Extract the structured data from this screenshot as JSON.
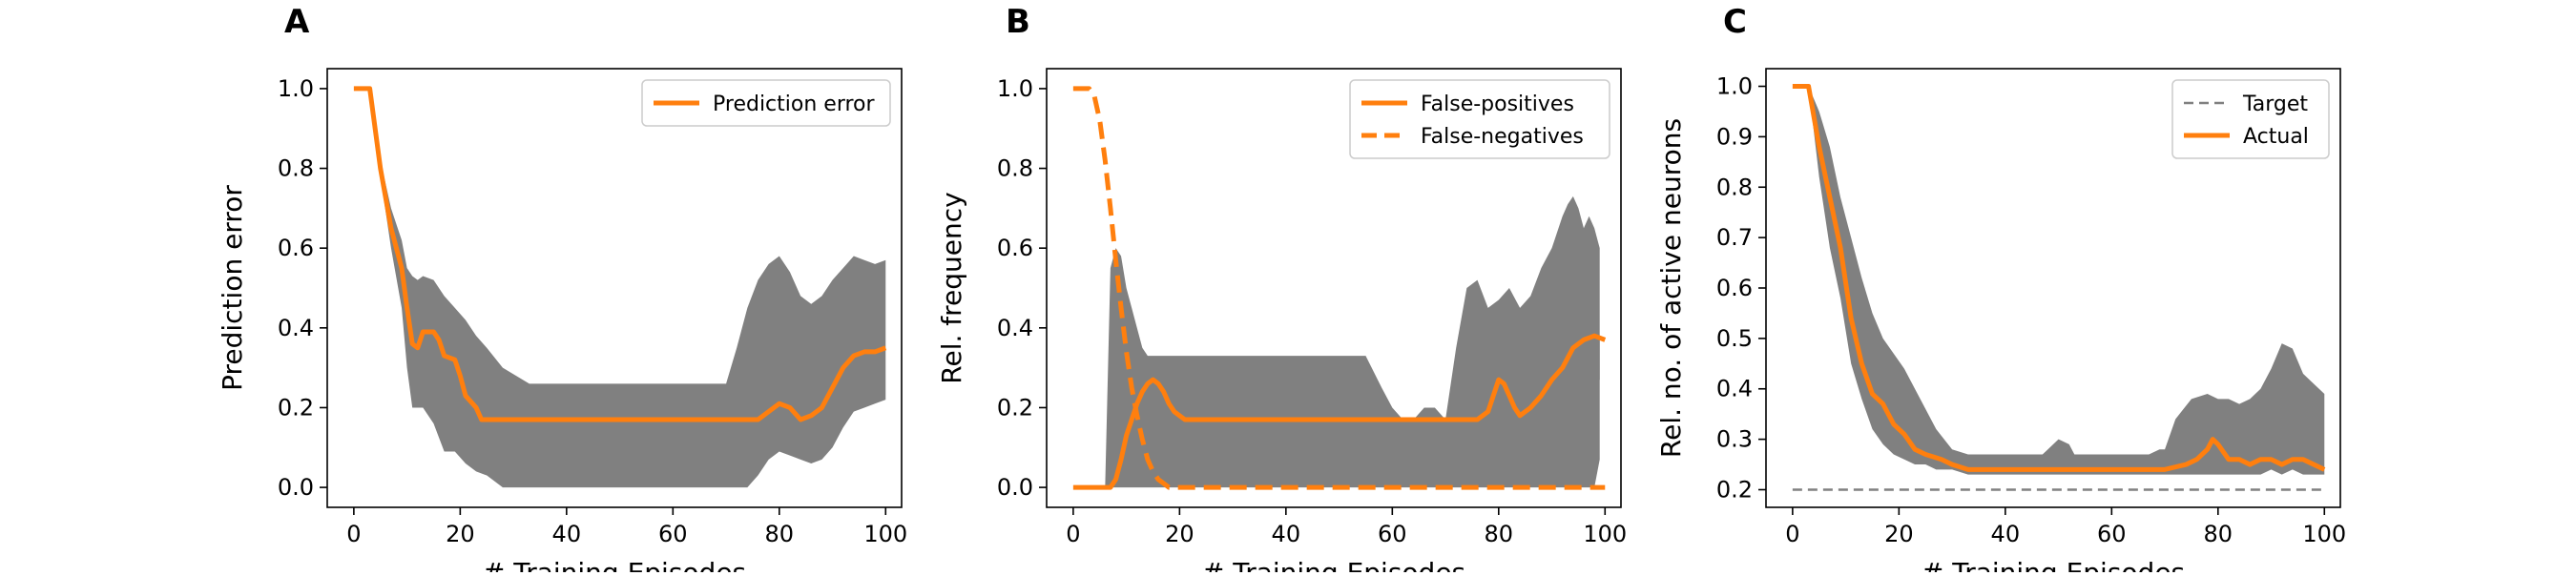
{
  "chart_data": [
    {
      "panel": "A",
      "type": "line",
      "xlabel": "# Training Episodes",
      "ylabel": "Prediction error",
      "xlim": [
        -5,
        103
      ],
      "ylim": [
        -0.05,
        1.05
      ],
      "xticks": [
        0,
        20,
        40,
        60,
        80,
        100
      ],
      "yticks": [
        0.0,
        0.2,
        0.4,
        0.6,
        0.8,
        1.0
      ],
      "ytick_labels": [
        "0.0",
        "0.2",
        "0.4",
        "0.6",
        "0.8",
        "1.0"
      ],
      "legend_position": "upper right",
      "series": [
        {
          "name": "Prediction error",
          "color": "#ff7f0e",
          "style": "solid",
          "x": [
            0,
            3,
            5,
            7,
            9,
            10,
            11,
            12,
            13,
            15,
            16,
            17,
            19,
            20,
            21,
            23,
            24,
            60,
            70,
            76,
            78,
            80,
            82,
            84,
            86,
            88,
            90,
            92,
            94,
            96,
            98,
            100
          ],
          "y": [
            1.0,
            1.0,
            0.8,
            0.65,
            0.55,
            0.45,
            0.36,
            0.35,
            0.39,
            0.39,
            0.37,
            0.33,
            0.32,
            0.28,
            0.23,
            0.2,
            0.17,
            0.17,
            0.17,
            0.17,
            0.19,
            0.21,
            0.2,
            0.17,
            0.18,
            0.2,
            0.25,
            0.3,
            0.33,
            0.34,
            0.34,
            0.35
          ]
        }
      ],
      "band": {
        "color": "#808080",
        "x": [
          0,
          3,
          5,
          7,
          9,
          10,
          11,
          12,
          13,
          15,
          17,
          19,
          21,
          23,
          25,
          28,
          33,
          40,
          50,
          60,
          65,
          70,
          72,
          74,
          76,
          78,
          80,
          82,
          84,
          86,
          88,
          90,
          92,
          94,
          96,
          98,
          100
        ],
        "upper": [
          1.0,
          1.0,
          0.82,
          0.7,
          0.62,
          0.55,
          0.53,
          0.52,
          0.53,
          0.52,
          0.48,
          0.45,
          0.42,
          0.38,
          0.35,
          0.3,
          0.26,
          0.26,
          0.26,
          0.26,
          0.26,
          0.26,
          0.35,
          0.45,
          0.52,
          0.56,
          0.58,
          0.54,
          0.48,
          0.46,
          0.48,
          0.52,
          0.55,
          0.58,
          0.57,
          0.56,
          0.57
        ],
        "lower": [
          1.0,
          1.0,
          0.78,
          0.6,
          0.45,
          0.3,
          0.2,
          0.2,
          0.2,
          0.16,
          0.09,
          0.09,
          0.06,
          0.04,
          0.03,
          0.0,
          0.0,
          0.0,
          0.0,
          0.0,
          0.0,
          0.0,
          0.0,
          0.0,
          0.03,
          0.07,
          0.09,
          0.08,
          0.07,
          0.06,
          0.07,
          0.1,
          0.15,
          0.19,
          0.2,
          0.21,
          0.22
        ]
      }
    },
    {
      "panel": "B",
      "type": "line",
      "xlabel": "# Training Episodes",
      "ylabel": "Rel. frequency",
      "xlim": [
        -5,
        103
      ],
      "ylim": [
        -0.05,
        1.05
      ],
      "xticks": [
        0,
        20,
        40,
        60,
        80,
        100
      ],
      "yticks": [
        0.0,
        0.2,
        0.4,
        0.6,
        0.8,
        1.0
      ],
      "ytick_labels": [
        "0.0",
        "0.2",
        "0.4",
        "0.6",
        "0.8",
        "1.0"
      ],
      "legend_position": "upper right",
      "series": [
        {
          "name": "False-positives",
          "color": "#ff7f0e",
          "style": "solid",
          "x": [
            0,
            7,
            8,
            9,
            10,
            11,
            12,
            13,
            14,
            15,
            16,
            17,
            18,
            19,
            20,
            21,
            22,
            76,
            78,
            80,
            81,
            82,
            83,
            84,
            86,
            88,
            90,
            92,
            94,
            96,
            98,
            100
          ],
          "y": [
            0.0,
            0.0,
            0.02,
            0.07,
            0.13,
            0.17,
            0.21,
            0.24,
            0.26,
            0.27,
            0.26,
            0.24,
            0.21,
            0.19,
            0.18,
            0.17,
            0.17,
            0.17,
            0.19,
            0.27,
            0.26,
            0.23,
            0.2,
            0.18,
            0.2,
            0.23,
            0.27,
            0.3,
            0.35,
            0.37,
            0.38,
            0.37
          ]
        },
        {
          "name": "False-negatives",
          "color": "#ff7f0e",
          "style": "dashed",
          "x": [
            0,
            3,
            4,
            5,
            6,
            7,
            8,
            9,
            10,
            11,
            12,
            13,
            14,
            15,
            16,
            17,
            18,
            94,
            96,
            100
          ],
          "y": [
            1.0,
            1.0,
            0.98,
            0.92,
            0.82,
            0.7,
            0.57,
            0.45,
            0.34,
            0.25,
            0.18,
            0.12,
            0.07,
            0.04,
            0.02,
            0.01,
            0.0,
            0.0,
            0.0,
            0.0
          ]
        }
      ],
      "band": {
        "color": "#808080",
        "x": [
          0,
          6,
          7,
          8,
          9,
          10,
          11,
          12,
          13,
          14,
          15,
          16,
          17,
          18,
          19,
          20,
          25,
          30,
          40,
          50,
          55,
          58,
          60,
          62,
          64,
          66,
          68,
          70,
          72,
          74,
          76,
          78,
          80,
          82,
          84,
          86,
          88,
          90,
          92,
          93,
          94,
          95,
          96,
          97,
          98,
          99
        ],
        "upper": [
          0.0,
          0.0,
          0.55,
          0.6,
          0.58,
          0.5,
          0.45,
          0.4,
          0.35,
          0.33,
          0.33,
          0.33,
          0.33,
          0.33,
          0.33,
          0.33,
          0.33,
          0.33,
          0.33,
          0.33,
          0.33,
          0.25,
          0.2,
          0.17,
          0.17,
          0.2,
          0.2,
          0.17,
          0.35,
          0.5,
          0.52,
          0.45,
          0.47,
          0.5,
          0.45,
          0.48,
          0.55,
          0.6,
          0.68,
          0.71,
          0.73,
          0.7,
          0.65,
          0.68,
          0.65,
          0.6
        ],
        "lower": [
          0.0,
          0.0,
          0.0,
          0.0,
          0.0,
          0.0,
          0.0,
          0.0,
          0.0,
          0.0,
          0.0,
          0.0,
          0.0,
          0.0,
          0.0,
          0.0,
          0.0,
          0.0,
          0.0,
          0.0,
          0.0,
          0.0,
          0.0,
          0.0,
          0.0,
          0.0,
          0.0,
          0.0,
          0.0,
          0.0,
          0.0,
          0.0,
          0.0,
          0.0,
          0.0,
          0.0,
          0.0,
          0.0,
          0.0,
          0.0,
          0.0,
          0.0,
          0.0,
          0.0,
          0.0,
          0.07
        ]
      },
      "band_secondary": {
        "color": "#808080",
        "x": [
          72,
          76,
          80,
          83,
          86,
          90,
          93,
          96,
          99
        ],
        "upper": [
          0.17,
          0.17,
          0.22,
          0.2,
          0.14,
          0.2,
          0.3,
          0.34,
          0.38
        ],
        "lower": [
          0.17,
          0.14,
          0.14,
          0.11,
          0.1,
          0.12,
          0.18,
          0.24,
          0.27
        ]
      }
    },
    {
      "panel": "C",
      "type": "line",
      "xlabel": "# Training Episodes",
      "ylabel": "Rel. no. of active neurons",
      "xlim": [
        -5,
        103
      ],
      "ylim": [
        0.165,
        1.035
      ],
      "xticks": [
        0,
        20,
        40,
        60,
        80,
        100
      ],
      "yticks": [
        0.2,
        0.3,
        0.4,
        0.5,
        0.6,
        0.7,
        0.8,
        0.9,
        1.0
      ],
      "ytick_labels": [
        "0.2",
        "0.3",
        "0.4",
        "0.5",
        "0.6",
        "0.7",
        "0.8",
        "0.9",
        "1.0"
      ],
      "legend_position": "upper right",
      "series": [
        {
          "name": "Target",
          "color": "#808080",
          "style": "dashed",
          "x": [
            0,
            100
          ],
          "y": [
            0.2,
            0.2
          ]
        },
        {
          "name": "Actual",
          "color": "#ff7f0e",
          "style": "solid",
          "x": [
            0,
            3,
            5,
            7,
            9,
            11,
            13,
            15,
            17,
            19,
            21,
            23,
            25,
            28,
            30,
            33,
            40,
            60,
            70,
            74,
            76,
            78,
            79,
            80,
            82,
            84,
            86,
            88,
            90,
            92,
            94,
            96,
            98,
            100
          ],
          "y": [
            1.0,
            1.0,
            0.88,
            0.78,
            0.68,
            0.54,
            0.45,
            0.39,
            0.37,
            0.33,
            0.31,
            0.28,
            0.27,
            0.26,
            0.25,
            0.24,
            0.24,
            0.24,
            0.24,
            0.25,
            0.26,
            0.28,
            0.3,
            0.29,
            0.26,
            0.26,
            0.25,
            0.26,
            0.26,
            0.25,
            0.26,
            0.26,
            0.25,
            0.24
          ]
        }
      ],
      "band": {
        "color": "#808080",
        "x": [
          0,
          3,
          5,
          7,
          9,
          11,
          13,
          15,
          17,
          19,
          21,
          23,
          25,
          27,
          30,
          33,
          40,
          47,
          48,
          50,
          52,
          53,
          60,
          67,
          69,
          70,
          72,
          75,
          78,
          80,
          82,
          84,
          86,
          88,
          90,
          92,
          94,
          96,
          98,
          100
        ],
        "upper": [
          1.0,
          1.0,
          0.95,
          0.88,
          0.78,
          0.7,
          0.62,
          0.55,
          0.5,
          0.47,
          0.44,
          0.4,
          0.36,
          0.32,
          0.28,
          0.27,
          0.27,
          0.27,
          0.28,
          0.3,
          0.29,
          0.27,
          0.27,
          0.27,
          0.28,
          0.28,
          0.34,
          0.38,
          0.39,
          0.38,
          0.38,
          0.37,
          0.38,
          0.4,
          0.44,
          0.49,
          0.48,
          0.43,
          0.41,
          0.39
        ],
        "lower": [
          1.0,
          1.0,
          0.82,
          0.68,
          0.58,
          0.45,
          0.38,
          0.32,
          0.29,
          0.27,
          0.26,
          0.25,
          0.25,
          0.24,
          0.24,
          0.23,
          0.23,
          0.23,
          0.23,
          0.23,
          0.23,
          0.23,
          0.23,
          0.23,
          0.23,
          0.23,
          0.23,
          0.23,
          0.23,
          0.23,
          0.23,
          0.23,
          0.23,
          0.23,
          0.24,
          0.23,
          0.24,
          0.23,
          0.23,
          0.23
        ]
      }
    }
  ]
}
